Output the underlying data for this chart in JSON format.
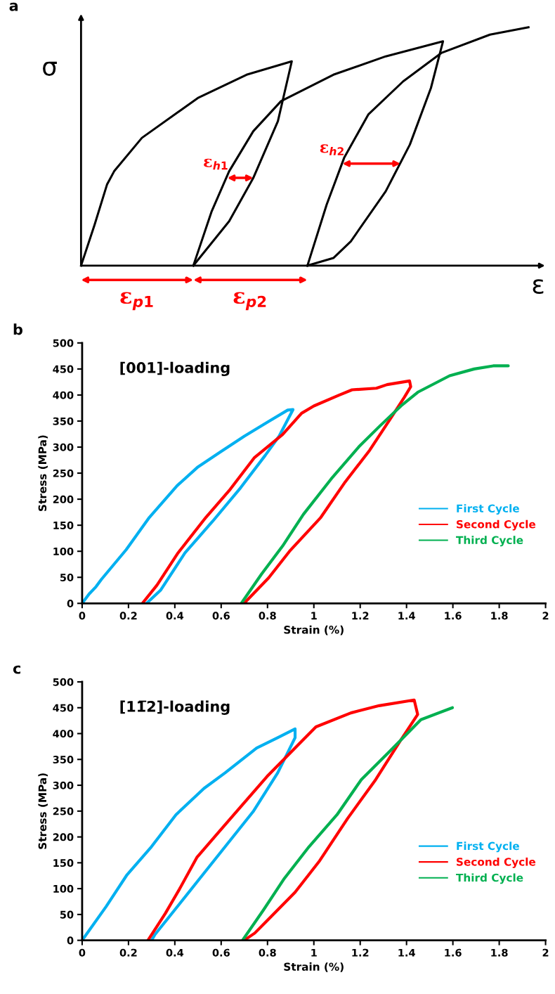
{
  "chart_data": [
    {
      "type": "other",
      "title": "a",
      "xlabel": "ε",
      "ylabel": "σ",
      "annotations": [
        "ε$_{h1}$",
        "ε$_{h2}$",
        "ε$_{p1}$",
        "ε$_{p2}$"
      ]
    },
    {
      "type": "line",
      "title": "b",
      "xlabel": "Strain (%)",
      "ylabel": "Stress (MPa)",
      "annotations": [
        "[001]-loading"
      ],
      "xlim": [
        0,
        2
      ],
      "xticks": [
        0,
        0.2,
        0.4,
        0.6,
        0.8,
        1,
        1.2,
        1.4,
        1.6,
        1.8,
        2
      ],
      "ylim": [
        0,
        500
      ],
      "yticks": [
        0,
        50,
        100,
        150,
        200,
        250,
        300,
        350,
        400,
        450,
        500
      ],
      "grid": false,
      "legend": "right",
      "series": [
        {
          "name": "First Cycle",
          "color": "#00b0f0",
          "x": [
            0,
            0.03,
            0.06,
            0.083,
            0.19,
            0.29,
            0.41,
            0.5,
            0.594,
            0.7,
            0.8,
            0.887,
            0.91,
            0.89,
            0.85,
            0.79,
            0.684,
            0.564,
            0.444,
            0.338,
            0.278
          ],
          "values": [
            0,
            18,
            32,
            46,
            103,
            165,
            226,
            262,
            290,
            321,
            348,
            371,
            372,
            355,
            321,
            284,
            222,
            158,
            97,
            25,
            0
          ]
        },
        {
          "name": "Second Cycle",
          "color": "#ff0000",
          "x": [
            0.26,
            0.323,
            0.414,
            0.534,
            0.639,
            0.744,
            0.865,
            0.947,
            1.0,
            1.105,
            1.165,
            1.27,
            1.316,
            1.413,
            1.418,
            1.391,
            1.331,
            1.241,
            1.135,
            1.03,
            0.895,
            0.805,
            0.699
          ],
          "values": [
            0,
            35,
            97,
            165,
            219,
            280,
            324,
            365,
            379,
            399,
            410,
            413,
            420,
            427,
            416,
            396,
            355,
            294,
            233,
            165,
            100,
            49,
            0
          ]
        },
        {
          "name": "Third Cycle",
          "color": "#00b050",
          "x": [
            0.687,
            0.774,
            0.865,
            0.955,
            1.075,
            1.195,
            1.286,
            1.376,
            1.451,
            1.586,
            1.692,
            1.774,
            1.839
          ],
          "values": [
            0,
            56,
            110,
            171,
            239,
            301,
            341,
            379,
            406,
            437,
            450,
            456,
            456
          ]
        }
      ]
    },
    {
      "type": "line",
      "title": "c",
      "xlabel": "Strain (%)",
      "ylabel": "Stress (MPa)",
      "annotations": [
        "[11̅2]-loading"
      ],
      "xlim": [
        0,
        2
      ],
      "xticks": [
        0,
        0.2,
        0.4,
        0.6,
        0.8,
        1,
        1.2,
        1.4,
        1.6,
        1.8,
        2
      ],
      "ylim": [
        0,
        500
      ],
      "yticks": [
        0,
        50,
        100,
        150,
        200,
        250,
        300,
        350,
        400,
        450,
        500
      ],
      "grid": false,
      "legend": "right",
      "series": [
        {
          "name": "First Cycle",
          "color": "#00b0f0",
          "x": [
            0,
            0.103,
            0.194,
            0.299,
            0.405,
            0.526,
            0.617,
            0.753,
            0.844,
            0.919,
            0.919,
            0.844,
            0.738,
            0.617,
            0.496,
            0.375,
            0.314,
            0.3
          ],
          "values": [
            0,
            65,
            127,
            181,
            243,
            294,
            324,
            372,
            392,
            409,
            392,
            324,
            249,
            181,
            113,
            45,
            11,
            0
          ]
        },
        {
          "name": "Second Cycle",
          "color": "#ff0000",
          "x": [
            0.284,
            0.359,
            0.42,
            0.496,
            0.587,
            0.693,
            0.798,
            0.934,
            1.009,
            1.16,
            1.282,
            1.433,
            1.448,
            1.373,
            1.267,
            1.146,
            1.025,
            0.919,
            0.798,
            0.745,
            0.699
          ],
          "values": [
            0,
            52,
            99,
            161,
            208,
            263,
            317,
            379,
            413,
            440,
            454,
            465,
            437,
            386,
            311,
            236,
            154,
            93,
            38,
            14,
            0
          ]
        },
        {
          "name": "Third Cycle",
          "color": "#00b050",
          "x": [
            0.692,
            0.783,
            0.873,
            0.979,
            1.1,
            1.205,
            1.326,
            1.462,
            1.598
          ],
          "values": [
            0,
            59,
            120,
            181,
            243,
            311,
            365,
            427,
            450
          ]
        }
      ]
    }
  ]
}
